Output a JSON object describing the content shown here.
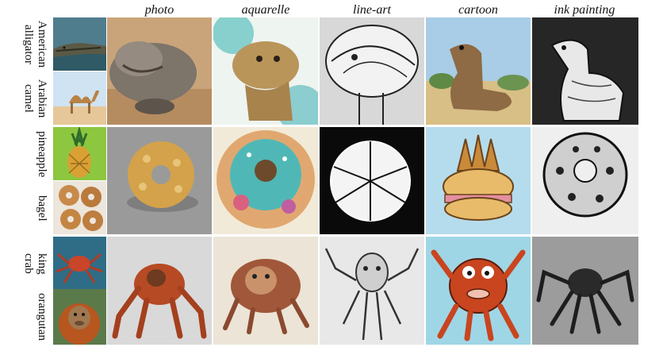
{
  "style_headers": [
    "photo",
    "aquarelle",
    "line-art",
    "cartoon",
    "ink painting"
  ],
  "rows": [
    {
      "concepts": [
        {
          "label": "American alligator",
          "words": [
            "American",
            "alligator"
          ]
        },
        {
          "label": "Arabian camel",
          "words": [
            "Arabian",
            "camel"
          ]
        }
      ],
      "cells": [
        {
          "style": "photo",
          "subject": "hybrid creature"
        },
        {
          "style": "aquarelle",
          "subject": "hybrid creature"
        },
        {
          "style": "line-art",
          "subject": "hybrid creature"
        },
        {
          "style": "cartoon",
          "subject": "hybrid creature"
        },
        {
          "style": "ink painting",
          "subject": "hybrid creature"
        }
      ]
    },
    {
      "concepts": [
        {
          "label": "pineapple",
          "words": [
            "pineapple"
          ]
        },
        {
          "label": "bagel",
          "words": [
            "bagel"
          ]
        }
      ],
      "cells": [
        {
          "style": "photo",
          "subject": "hybrid food"
        },
        {
          "style": "aquarelle",
          "subject": "hybrid food"
        },
        {
          "style": "line-art",
          "subject": "hybrid food"
        },
        {
          "style": "cartoon",
          "subject": "hybrid food"
        },
        {
          "style": "ink painting",
          "subject": "hybrid food"
        }
      ]
    },
    {
      "concepts": [
        {
          "label": "king crab",
          "words": [
            "king",
            "crab"
          ]
        },
        {
          "label": "orangutan",
          "words": [
            "orangutan"
          ]
        }
      ],
      "cells": [
        {
          "style": "photo",
          "subject": "hybrid creature"
        },
        {
          "style": "aquarelle",
          "subject": "hybrid creature"
        },
        {
          "style": "line-art",
          "subject": "hybrid creature"
        },
        {
          "style": "cartoon",
          "subject": "hybrid creature"
        },
        {
          "style": "ink painting",
          "subject": "hybrid creature"
        }
      ]
    }
  ]
}
